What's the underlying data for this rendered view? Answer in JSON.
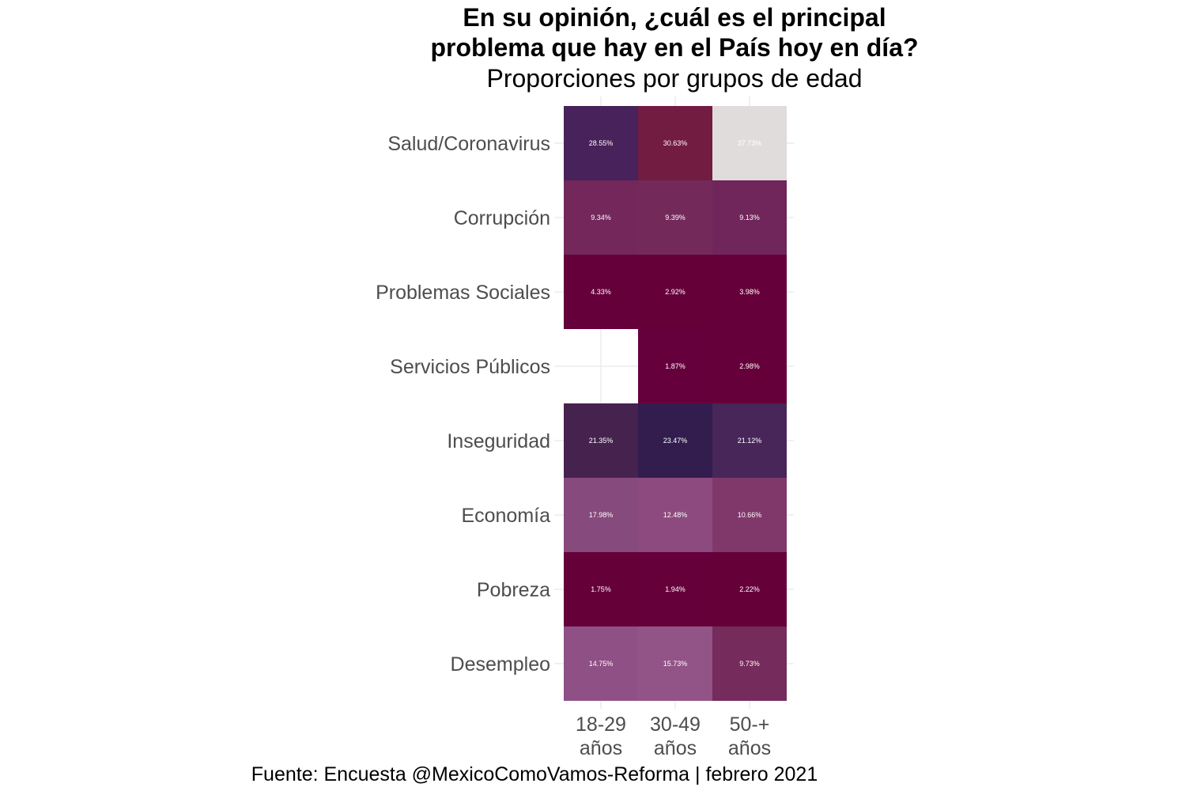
{
  "chart_data": {
    "type": "heatmap",
    "title": [
      "En su opinión, ¿cuál es el principal",
      "problema que hay en el País hoy en día?"
    ],
    "subtitle": "Proporciones por grupos de edad",
    "caption": "Fuente: Encuesta @MexicoComoVamos-Reforma | febrero 2021",
    "columns": [
      {
        "key": "18-29",
        "label": [
          "18-29",
          "años"
        ]
      },
      {
        "key": "30-49",
        "label": [
          "30-49",
          "años"
        ]
      },
      {
        "key": "50+",
        "label": [
          "50-+",
          "años"
        ]
      }
    ],
    "rows": [
      "Salud/Coronavirus",
      "Corrupción",
      "Problemas Sociales",
      "Servicios Públicos",
      "Inseguridad",
      "Economía",
      "Pobreza",
      "Desempleo"
    ],
    "values": [
      [
        28.55,
        30.63,
        37.73
      ],
      [
        9.34,
        9.39,
        9.13
      ],
      [
        4.33,
        2.92,
        3.98
      ],
      [
        null,
        1.87,
        2.98
      ],
      [
        21.35,
        23.47,
        21.12
      ],
      [
        17.98,
        12.48,
        10.66
      ],
      [
        1.75,
        1.94,
        2.22
      ],
      [
        14.75,
        15.73,
        9.73
      ]
    ],
    "labels": [
      [
        "28.55%",
        "30.63%",
        "37.73%"
      ],
      [
        "9.34%",
        "9.39%",
        "9.13%"
      ],
      [
        "4.33%",
        "2.92%",
        "3.98%"
      ],
      [
        "",
        "1.87%",
        "2.98%"
      ],
      [
        "21.35%",
        "23.47%",
        "21.12%"
      ],
      [
        "17.98%",
        "12.48%",
        "10.66%"
      ],
      [
        "1.75%",
        "1.94%",
        "2.22%"
      ],
      [
        "14.75%",
        "15.73%",
        "9.73%"
      ]
    ],
    "colors": [
      [
        "#48225a",
        "#731c42",
        "#e0dcdc"
      ],
      [
        "#73275a",
        "#732a5a",
        "#70265a"
      ],
      [
        "#65003a",
        "#650039",
        "#65003a"
      ],
      [
        null,
        "#66003c",
        "#66003a"
      ],
      [
        "#46234f",
        "#321d4e",
        "#48265a"
      ],
      [
        "#874a7c",
        "#8c4a7f",
        "#80386b"
      ],
      [
        "#650039",
        "#65003a",
        "#650039"
      ],
      [
        "#8f5085",
        "#925486",
        "#752b5b"
      ]
    ]
  }
}
